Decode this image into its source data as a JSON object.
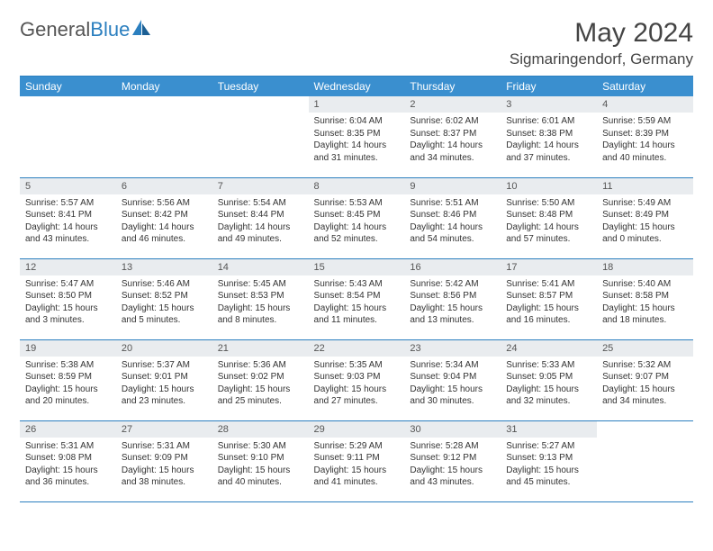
{
  "logo": {
    "text1": "General",
    "text2": "Blue"
  },
  "title": "May 2024",
  "location": "Sigmaringendorf, Germany",
  "colors": {
    "header_bg": "#3a8fcf",
    "border": "#2b7fbf",
    "daynum_bg": "#e9ecef",
    "text": "#333333",
    "title_text": "#444444"
  },
  "weekdays": [
    "Sunday",
    "Monday",
    "Tuesday",
    "Wednesday",
    "Thursday",
    "Friday",
    "Saturday"
  ],
  "weeks": [
    [
      {
        "n": "",
        "l": []
      },
      {
        "n": "",
        "l": []
      },
      {
        "n": "",
        "l": []
      },
      {
        "n": "1",
        "l": [
          "Sunrise: 6:04 AM",
          "Sunset: 8:35 PM",
          "Daylight: 14 hours",
          "and 31 minutes."
        ]
      },
      {
        "n": "2",
        "l": [
          "Sunrise: 6:02 AM",
          "Sunset: 8:37 PM",
          "Daylight: 14 hours",
          "and 34 minutes."
        ]
      },
      {
        "n": "3",
        "l": [
          "Sunrise: 6:01 AM",
          "Sunset: 8:38 PM",
          "Daylight: 14 hours",
          "and 37 minutes."
        ]
      },
      {
        "n": "4",
        "l": [
          "Sunrise: 5:59 AM",
          "Sunset: 8:39 PM",
          "Daylight: 14 hours",
          "and 40 minutes."
        ]
      }
    ],
    [
      {
        "n": "5",
        "l": [
          "Sunrise: 5:57 AM",
          "Sunset: 8:41 PM",
          "Daylight: 14 hours",
          "and 43 minutes."
        ]
      },
      {
        "n": "6",
        "l": [
          "Sunrise: 5:56 AM",
          "Sunset: 8:42 PM",
          "Daylight: 14 hours",
          "and 46 minutes."
        ]
      },
      {
        "n": "7",
        "l": [
          "Sunrise: 5:54 AM",
          "Sunset: 8:44 PM",
          "Daylight: 14 hours",
          "and 49 minutes."
        ]
      },
      {
        "n": "8",
        "l": [
          "Sunrise: 5:53 AM",
          "Sunset: 8:45 PM",
          "Daylight: 14 hours",
          "and 52 minutes."
        ]
      },
      {
        "n": "9",
        "l": [
          "Sunrise: 5:51 AM",
          "Sunset: 8:46 PM",
          "Daylight: 14 hours",
          "and 54 minutes."
        ]
      },
      {
        "n": "10",
        "l": [
          "Sunrise: 5:50 AM",
          "Sunset: 8:48 PM",
          "Daylight: 14 hours",
          "and 57 minutes."
        ]
      },
      {
        "n": "11",
        "l": [
          "Sunrise: 5:49 AM",
          "Sunset: 8:49 PM",
          "Daylight: 15 hours",
          "and 0 minutes."
        ]
      }
    ],
    [
      {
        "n": "12",
        "l": [
          "Sunrise: 5:47 AM",
          "Sunset: 8:50 PM",
          "Daylight: 15 hours",
          "and 3 minutes."
        ]
      },
      {
        "n": "13",
        "l": [
          "Sunrise: 5:46 AM",
          "Sunset: 8:52 PM",
          "Daylight: 15 hours",
          "and 5 minutes."
        ]
      },
      {
        "n": "14",
        "l": [
          "Sunrise: 5:45 AM",
          "Sunset: 8:53 PM",
          "Daylight: 15 hours",
          "and 8 minutes."
        ]
      },
      {
        "n": "15",
        "l": [
          "Sunrise: 5:43 AM",
          "Sunset: 8:54 PM",
          "Daylight: 15 hours",
          "and 11 minutes."
        ]
      },
      {
        "n": "16",
        "l": [
          "Sunrise: 5:42 AM",
          "Sunset: 8:56 PM",
          "Daylight: 15 hours",
          "and 13 minutes."
        ]
      },
      {
        "n": "17",
        "l": [
          "Sunrise: 5:41 AM",
          "Sunset: 8:57 PM",
          "Daylight: 15 hours",
          "and 16 minutes."
        ]
      },
      {
        "n": "18",
        "l": [
          "Sunrise: 5:40 AM",
          "Sunset: 8:58 PM",
          "Daylight: 15 hours",
          "and 18 minutes."
        ]
      }
    ],
    [
      {
        "n": "19",
        "l": [
          "Sunrise: 5:38 AM",
          "Sunset: 8:59 PM",
          "Daylight: 15 hours",
          "and 20 minutes."
        ]
      },
      {
        "n": "20",
        "l": [
          "Sunrise: 5:37 AM",
          "Sunset: 9:01 PM",
          "Daylight: 15 hours",
          "and 23 minutes."
        ]
      },
      {
        "n": "21",
        "l": [
          "Sunrise: 5:36 AM",
          "Sunset: 9:02 PM",
          "Daylight: 15 hours",
          "and 25 minutes."
        ]
      },
      {
        "n": "22",
        "l": [
          "Sunrise: 5:35 AM",
          "Sunset: 9:03 PM",
          "Daylight: 15 hours",
          "and 27 minutes."
        ]
      },
      {
        "n": "23",
        "l": [
          "Sunrise: 5:34 AM",
          "Sunset: 9:04 PM",
          "Daylight: 15 hours",
          "and 30 minutes."
        ]
      },
      {
        "n": "24",
        "l": [
          "Sunrise: 5:33 AM",
          "Sunset: 9:05 PM",
          "Daylight: 15 hours",
          "and 32 minutes."
        ]
      },
      {
        "n": "25",
        "l": [
          "Sunrise: 5:32 AM",
          "Sunset: 9:07 PM",
          "Daylight: 15 hours",
          "and 34 minutes."
        ]
      }
    ],
    [
      {
        "n": "26",
        "l": [
          "Sunrise: 5:31 AM",
          "Sunset: 9:08 PM",
          "Daylight: 15 hours",
          "and 36 minutes."
        ]
      },
      {
        "n": "27",
        "l": [
          "Sunrise: 5:31 AM",
          "Sunset: 9:09 PM",
          "Daylight: 15 hours",
          "and 38 minutes."
        ]
      },
      {
        "n": "28",
        "l": [
          "Sunrise: 5:30 AM",
          "Sunset: 9:10 PM",
          "Daylight: 15 hours",
          "and 40 minutes."
        ]
      },
      {
        "n": "29",
        "l": [
          "Sunrise: 5:29 AM",
          "Sunset: 9:11 PM",
          "Daylight: 15 hours",
          "and 41 minutes."
        ]
      },
      {
        "n": "30",
        "l": [
          "Sunrise: 5:28 AM",
          "Sunset: 9:12 PM",
          "Daylight: 15 hours",
          "and 43 minutes."
        ]
      },
      {
        "n": "31",
        "l": [
          "Sunrise: 5:27 AM",
          "Sunset: 9:13 PM",
          "Daylight: 15 hours",
          "and 45 minutes."
        ]
      },
      {
        "n": "",
        "l": []
      }
    ]
  ]
}
